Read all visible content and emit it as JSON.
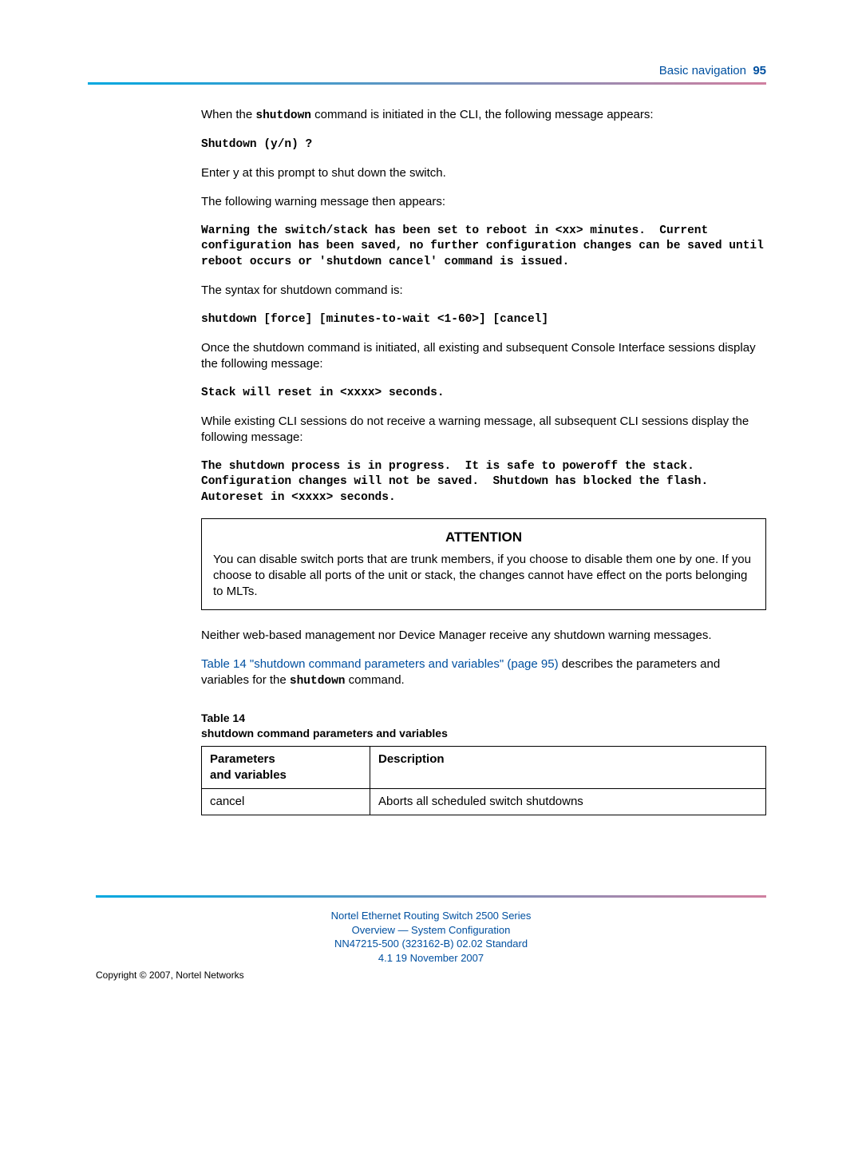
{
  "header": {
    "section": "Basic navigation",
    "page_number": "95"
  },
  "body": {
    "p1_pre": "When the ",
    "p1_code": "shutdown",
    "p1_post": " command is initiated in the CLI, the following message appears:",
    "code1": "Shutdown (y/n) ?",
    "p2": "Enter y at this prompt to shut down the switch.",
    "p3": "The following warning message then appears:",
    "code2": "Warning the switch/stack has been set to reboot in <xx> minutes.  Current configuration has been saved, no further configuration changes can be saved until reboot occurs or 'shutdown cancel' command is issued.",
    "p4": "The syntax for shutdown command is:",
    "code3": "shutdown [force] [minutes-to-wait <1-60>] [cancel]",
    "p5": "Once the shutdown command is initiated, all existing and subsequent Console Interface sessions display the following message:",
    "code4": "Stack will reset in <xxxx> seconds.",
    "p6": "While existing CLI sessions do not receive a warning message, all subsequent CLI sessions display the following message:",
    "code5": "The shutdown process is in progress.  It is safe to poweroff the stack.  Configuration changes will not be saved.  Shutdown has blocked the flash.  Autoreset in <xxxx> seconds.",
    "attention_title": "ATTENTION",
    "attention_body": "You can disable switch ports that are trunk members, if you choose to disable them one by one. If you choose to disable all ports of the unit or stack, the changes cannot have effect on the ports belonging to MLTs.",
    "p7": "Neither web-based management nor Device Manager receive any shutdown warning messages.",
    "xref_text": "Table 14 \"shutdown command parameters and variables\" (page 95)",
    "p8_mid": " describes the parameters and variables for the ",
    "p8_code": "shutdown",
    "p8_post": " command.",
    "table_caption_line1": "Table 14",
    "table_caption_line2": "shutdown command parameters and variables",
    "table": {
      "col1_header_l1": "Parameters",
      "col1_header_l2": "and variables",
      "col2_header": "Description",
      "row1_param": "cancel",
      "row1_desc": "Aborts all scheduled switch shutdowns"
    }
  },
  "footer": {
    "line1": "Nortel Ethernet Routing Switch 2500 Series",
    "line2": "Overview — System Configuration",
    "line3": "NN47215-500 (323162-B)   02.02   Standard",
    "line4": "4.1   19 November 2007",
    "copyright": "Copyright © 2007, Nortel Networks"
  },
  "colors": {
    "link": "#0050a0",
    "rule_start": "#00a8e0",
    "rule_end": "#d080a0",
    "text": "#000000",
    "background": "#ffffff"
  }
}
